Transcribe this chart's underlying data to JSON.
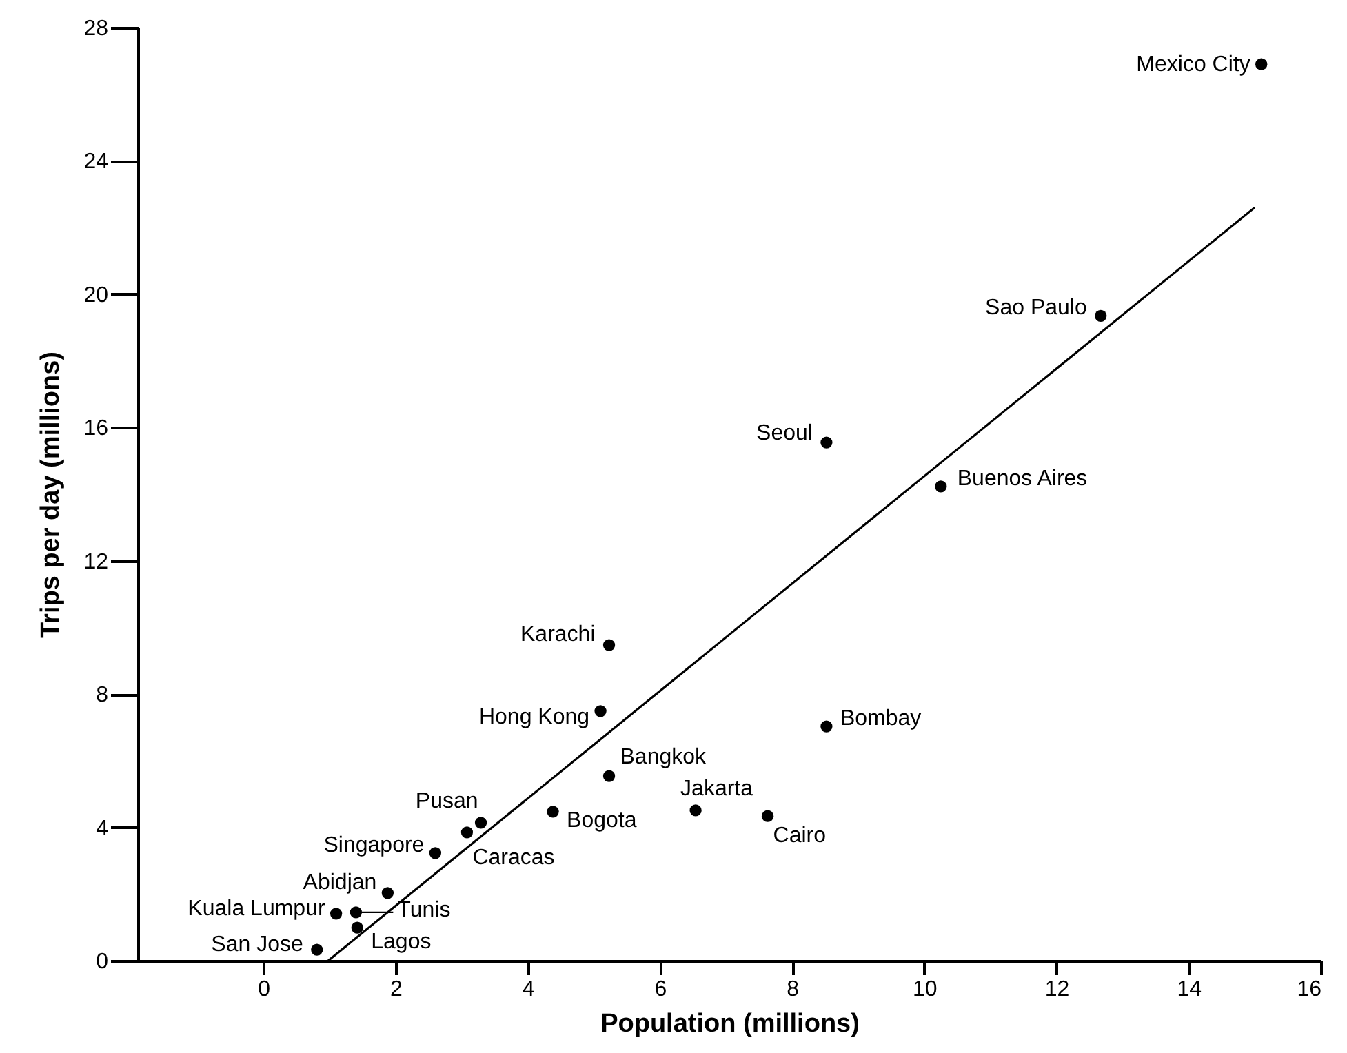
{
  "chart_data": {
    "type": "scatter",
    "xlabel": "Population (millions)",
    "ylabel": "Trips per day (millions)",
    "xlim": [
      -1.9,
      16
    ],
    "ylim": [
      0,
      28
    ],
    "xticks": [
      0,
      2,
      4,
      6,
      8,
      10,
      12,
      14,
      16
    ],
    "yticks": [
      0,
      4,
      8,
      12,
      16,
      20,
      24,
      28
    ],
    "marker": "circle",
    "series": [
      {
        "name": "Mexico City",
        "color": "#000000",
        "x": [
          15.1
        ],
        "values": [
          26.9
        ]
      },
      {
        "name": "Sao Paulo",
        "color": "#000000",
        "x": [
          12.67
        ],
        "values": [
          19.35
        ]
      },
      {
        "name": "Seoul",
        "color": "#000000",
        "x": [
          8.52
        ],
        "values": [
          15.55
        ]
      },
      {
        "name": "Buenos Aires",
        "color": "#000000",
        "x": [
          10.25
        ],
        "values": [
          14.23
        ]
      },
      {
        "name": "Karachi",
        "color": "#000000",
        "x": [
          5.23
        ],
        "values": [
          9.47
        ]
      },
      {
        "name": "Hong Kong",
        "color": "#000000",
        "x": [
          5.1
        ],
        "values": [
          7.49
        ]
      },
      {
        "name": "Bombay",
        "color": "#000000",
        "x": [
          8.52
        ],
        "values": [
          7.03
        ]
      },
      {
        "name": "Bangkok",
        "color": "#000000",
        "x": [
          5.23
        ],
        "values": [
          5.54
        ]
      },
      {
        "name": "Jakarta",
        "color": "#000000",
        "x": [
          6.54
        ],
        "values": [
          4.51
        ]
      },
      {
        "name": "Cairo",
        "color": "#000000",
        "x": [
          7.63
        ],
        "values": [
          4.34
        ]
      },
      {
        "name": "Bogota",
        "color": "#000000",
        "x": [
          4.38
        ],
        "values": [
          4.47
        ]
      },
      {
        "name": "Pusan",
        "color": "#000000",
        "x": [
          3.29
        ],
        "values": [
          4.14
        ]
      },
      {
        "name": "Caracas",
        "color": "#000000",
        "x": [
          3.08
        ],
        "values": [
          3.85
        ]
      },
      {
        "name": "Singapore",
        "color": "#000000",
        "x": [
          2.6
        ],
        "values": [
          3.23
        ]
      },
      {
        "name": "Abidjan",
        "color": "#000000",
        "x": [
          1.88
        ],
        "values": [
          2.03
        ]
      },
      {
        "name": "Kuala Lumpur",
        "color": "#000000",
        "x": [
          1.1
        ],
        "values": [
          1.41
        ]
      },
      {
        "name": "Tunis",
        "color": "#000000",
        "x": [
          1.4
        ],
        "values": [
          1.45
        ]
      },
      {
        "name": "Lagos",
        "color": "#000000",
        "x": [
          1.42
        ],
        "values": [
          0.99
        ]
      },
      {
        "name": "San Jose",
        "color": "#000000",
        "x": [
          0.81
        ],
        "values": [
          0.33
        ]
      },
      {
        "type": "line",
        "marker": "none",
        "color": "#000000",
        "x": [
          0.98,
          15.0
        ],
        "values": [
          0,
          22.6
        ]
      }
    ]
  }
}
